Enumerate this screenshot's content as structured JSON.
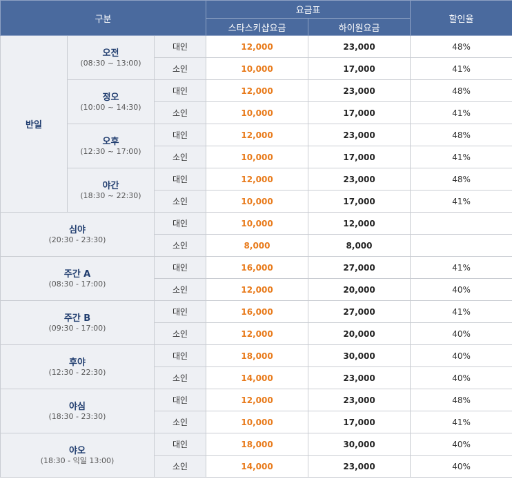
{
  "header": {
    "category": "구분",
    "fee_table": "요금표",
    "star_price": "스타스키샵요금",
    "high_price": "하이원요금",
    "discount": "할인율"
  },
  "half_day": {
    "label": "반일",
    "sessions": [
      {
        "name": "오전",
        "time": "(08:30 ~ 13:00)",
        "rows": [
          {
            "age": "대인",
            "star": "12,000",
            "high": "23,000",
            "rate": "48%"
          },
          {
            "age": "소인",
            "star": "10,000",
            "high": "17,000",
            "rate": "41%"
          }
        ]
      },
      {
        "name": "정오",
        "time": "(10:00 ~ 14:30)",
        "rows": [
          {
            "age": "대인",
            "star": "12,000",
            "high": "23,000",
            "rate": "48%"
          },
          {
            "age": "소인",
            "star": "10,000",
            "high": "17,000",
            "rate": "41%"
          }
        ]
      },
      {
        "name": "오후",
        "time": "(12:30 ~ 17:00)",
        "rows": [
          {
            "age": "대인",
            "star": "12,000",
            "high": "23,000",
            "rate": "48%"
          },
          {
            "age": "소인",
            "star": "10,000",
            "high": "17,000",
            "rate": "41%"
          }
        ]
      },
      {
        "name": "야간",
        "time": "(18:30 ~ 22:30)",
        "rows": [
          {
            "age": "대인",
            "star": "12,000",
            "high": "23,000",
            "rate": "48%"
          },
          {
            "age": "소인",
            "star": "10,000",
            "high": "17,000",
            "rate": "41%"
          }
        ]
      }
    ]
  },
  "groups": [
    {
      "name": "심야",
      "time": "(20:30 - 23:30)",
      "rows": [
        {
          "age": "대인",
          "star": "10,000",
          "high": "12,000",
          "rate": ""
        },
        {
          "age": "소인",
          "star": "8,000",
          "high": "8,000",
          "rate": ""
        }
      ]
    },
    {
      "name": "주간 A",
      "time": "(08:30 - 17:00)",
      "rows": [
        {
          "age": "대인",
          "star": "16,000",
          "high": "27,000",
          "rate": "41%"
        },
        {
          "age": "소인",
          "star": "12,000",
          "high": "20,000",
          "rate": "40%"
        }
      ]
    },
    {
      "name": "주간 B",
      "time": "(09:30 - 17:00)",
      "rows": [
        {
          "age": "대인",
          "star": "16,000",
          "high": "27,000",
          "rate": "41%"
        },
        {
          "age": "소인",
          "star": "12,000",
          "high": "20,000",
          "rate": "40%"
        }
      ]
    },
    {
      "name": "후야",
      "time": "(12:30 - 22:30)",
      "rows": [
        {
          "age": "대인",
          "star": "18,000",
          "high": "30,000",
          "rate": "40%"
        },
        {
          "age": "소인",
          "star": "14,000",
          "high": "23,000",
          "rate": "40%"
        }
      ]
    },
    {
      "name": "야심",
      "time": "(18:30 - 23:30)",
      "rows": [
        {
          "age": "대인",
          "star": "12,000",
          "high": "23,000",
          "rate": "48%"
        },
        {
          "age": "소인",
          "star": "10,000",
          "high": "17,000",
          "rate": "41%"
        }
      ]
    },
    {
      "name": "야오",
      "time": "(18:30 - 익일 13:00)",
      "rows": [
        {
          "age": "대인",
          "star": "18,000",
          "high": "30,000",
          "rate": "40%"
        },
        {
          "age": "소인",
          "star": "14,000",
          "high": "23,000",
          "rate": "40%"
        }
      ]
    }
  ],
  "colors": {
    "header_bg": "#4a6a9e",
    "star_price": "#e87a1a",
    "group_bg": "#eef0f4"
  }
}
